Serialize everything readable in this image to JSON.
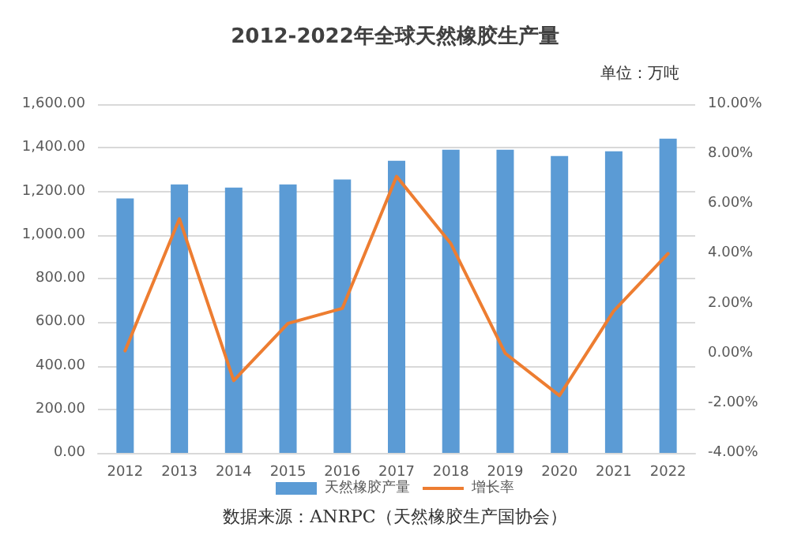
{
  "chart_data": {
    "type": "bar",
    "title": "2012-2022年全球天然橡胶生产量",
    "annotations": [
      "单位：万吨",
      "数据来源：ANRPC（天然橡胶生产国协会）"
    ],
    "categories": [
      "2012",
      "2013",
      "2014",
      "2015",
      "2016",
      "2017",
      "2018",
      "2019",
      "2020",
      "2021",
      "2022"
    ],
    "series": [
      {
        "name": "天然橡胶产量",
        "color": "#5b9bd5",
        "values": [
          1167,
          1232,
          1217,
          1232,
          1254,
          1340,
          1391,
          1391,
          1362,
          1384,
          1442
        ]
      },
      {
        "name": "增长率",
        "type": "line",
        "axis": "y2",
        "color": "#ed7d31",
        "values": [
          0.1,
          5.4,
          -1.1,
          1.2,
          1.8,
          7.1,
          4.4,
          0.0,
          -1.7,
          1.7,
          4.0
        ]
      }
    ],
    "ylim": [
      0,
      1600
    ],
    "yticks": [
      {
        "value": 0,
        "label": "0.00"
      },
      {
        "value": 200,
        "label": "200.00"
      },
      {
        "value": 400,
        "label": "400.00"
      },
      {
        "value": 600,
        "label": "600.00"
      },
      {
        "value": 800,
        "label": "800.00"
      },
      {
        "value": 1000,
        "label": "1,000.00"
      },
      {
        "value": 1200,
        "label": "1,200.00"
      },
      {
        "value": 1400,
        "label": "1,400.00"
      },
      {
        "value": 1600,
        "label": "1,600.00"
      }
    ],
    "y2lim": [
      -4,
      10
    ],
    "y2ticks": [
      {
        "value": -4,
        "label": "-4.00%"
      },
      {
        "value": -2,
        "label": "-2.00%"
      },
      {
        "value": 0,
        "label": "0.00%"
      },
      {
        "value": 2,
        "label": "2.00%"
      },
      {
        "value": 4,
        "label": "4.00%"
      },
      {
        "value": 6,
        "label": "6.00%"
      },
      {
        "value": 8,
        "label": "8.00%"
      },
      {
        "value": 10,
        "label": "10.00%"
      }
    ],
    "grid": "y",
    "legend": "bottom",
    "marker": "none",
    "line_style": "solid"
  }
}
